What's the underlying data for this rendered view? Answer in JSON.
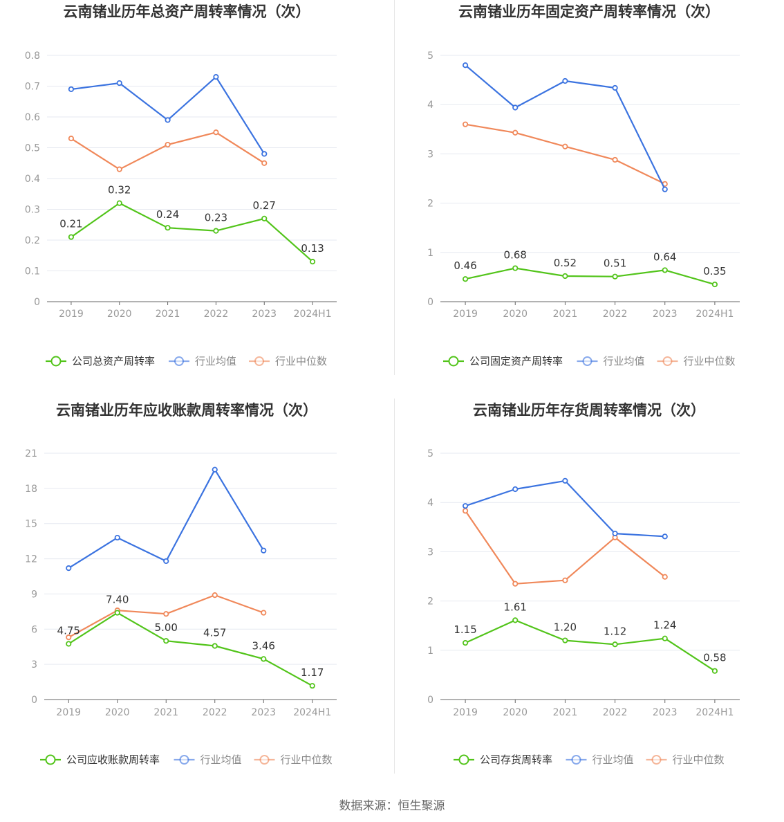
{
  "source": "数据来源：恒生聚源",
  "colors": {
    "company": "#52c41a",
    "industry_avg": "#3b73e0",
    "industry_median": "#f0885a",
    "grid": "#e6e9f0",
    "axis": "#999999"
  },
  "chart_data": [
    {
      "type": "line",
      "title": "云南锗业历年总资产周转率情况（次）",
      "categories": [
        "2019",
        "2020",
        "2021",
        "2022",
        "2023",
        "2024H1"
      ],
      "ylim": [
        0,
        0.8
      ],
      "yticks": [
        "0",
        "0.1",
        "0.2",
        "0.3",
        "0.4",
        "0.5",
        "0.6",
        "0.7",
        "0.8"
      ],
      "ytick_values": [
        0,
        0.1,
        0.2,
        0.3,
        0.4,
        0.5,
        0.6,
        0.7,
        0.8
      ],
      "grid": true,
      "legend_position": "bottom",
      "series": [
        {
          "name": "公司总资产周转率",
          "values": [
            0.21,
            0.32,
            0.24,
            0.23,
            0.27,
            0.13
          ],
          "labels": [
            "0.21",
            "0.32",
            "0.24",
            "0.23",
            "0.27",
            "0.13"
          ]
        },
        {
          "name": "行业均值",
          "values": [
            0.69,
            0.71,
            0.59,
            0.73,
            0.48,
            null
          ]
        },
        {
          "name": "行业中位数",
          "values": [
            0.53,
            0.43,
            0.51,
            0.55,
            0.45,
            null
          ]
        }
      ]
    },
    {
      "type": "line",
      "title": "云南锗业历年固定资产周转率情况（次）",
      "categories": [
        "2019",
        "2020",
        "2021",
        "2022",
        "2023",
        "2024H1"
      ],
      "ylim": [
        0,
        5
      ],
      "yticks": [
        "0",
        "1",
        "2",
        "3",
        "4",
        "5"
      ],
      "ytick_values": [
        0,
        1,
        2,
        3,
        4,
        5
      ],
      "grid": true,
      "legend_position": "bottom",
      "series": [
        {
          "name": "公司固定资产周转率",
          "values": [
            0.46,
            0.68,
            0.52,
            0.51,
            0.64,
            0.35
          ],
          "labels": [
            "0.46",
            "0.68",
            "0.52",
            "0.51",
            "0.64",
            "0.35"
          ]
        },
        {
          "name": "行业均值",
          "values": [
            4.8,
            3.94,
            4.48,
            4.34,
            2.28,
            null
          ]
        },
        {
          "name": "行业中位数",
          "values": [
            3.6,
            3.43,
            3.15,
            2.88,
            2.39,
            null
          ]
        }
      ]
    },
    {
      "type": "line",
      "title": "云南锗业历年应收账款周转率情况（次）",
      "categories": [
        "2019",
        "2020",
        "2021",
        "2022",
        "2023",
        "2024H1"
      ],
      "ylim": [
        0,
        21
      ],
      "yticks": [
        "0",
        "3",
        "6",
        "9",
        "12",
        "15",
        "18",
        "21"
      ],
      "ytick_values": [
        0,
        3,
        6,
        9,
        12,
        15,
        18,
        21
      ],
      "grid": true,
      "legend_position": "bottom",
      "series": [
        {
          "name": "公司应收账款周转率",
          "values": [
            4.75,
            7.4,
            5.0,
            4.57,
            3.46,
            1.17
          ],
          "labels": [
            "4.75",
            "7.40",
            "5.00",
            "4.57",
            "3.46",
            "1.17"
          ]
        },
        {
          "name": "行业均值",
          "values": [
            11.2,
            13.8,
            11.8,
            19.6,
            12.7,
            null
          ]
        },
        {
          "name": "行业中位数",
          "values": [
            5.3,
            7.6,
            7.3,
            8.9,
            7.4,
            null
          ]
        }
      ]
    },
    {
      "type": "line",
      "title": "云南锗业历年存货周转率情况（次）",
      "categories": [
        "2019",
        "2020",
        "2021",
        "2022",
        "2023",
        "2024H1"
      ],
      "ylim": [
        0,
        5
      ],
      "yticks": [
        "0",
        "1",
        "2",
        "3",
        "4",
        "5"
      ],
      "ytick_values": [
        0,
        1,
        2,
        3,
        4,
        5
      ],
      "grid": true,
      "legend_position": "bottom",
      "series": [
        {
          "name": "公司存货周转率",
          "values": [
            1.15,
            1.61,
            1.2,
            1.12,
            1.24,
            0.58
          ],
          "labels": [
            "1.15",
            "1.61",
            "1.20",
            "1.12",
            "1.24",
            "0.58"
          ]
        },
        {
          "name": "行业均值",
          "values": [
            3.93,
            4.27,
            4.44,
            3.37,
            3.31,
            null
          ]
        },
        {
          "name": "行业中位数",
          "values": [
            3.83,
            2.35,
            2.42,
            3.29,
            2.49,
            null
          ]
        }
      ]
    }
  ]
}
